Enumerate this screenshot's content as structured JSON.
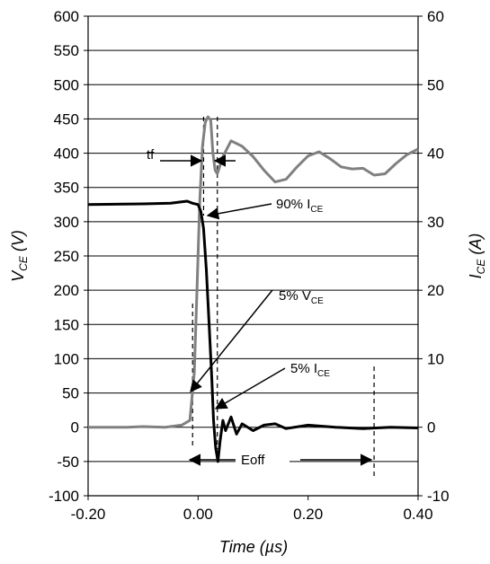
{
  "chart_data": {
    "type": "line",
    "xlabel": "Time (µs)",
    "ylabel_left_main": "V",
    "ylabel_left_sub": "CE",
    "ylabel_left_unit": " (V)",
    "ylabel_right_main": "I",
    "ylabel_right_sub": "CE",
    "ylabel_right_unit": " (A)",
    "xlim": [
      -0.2,
      0.4
    ],
    "ylim_left": [
      -100,
      600
    ],
    "ylim_right": [
      -10,
      60
    ],
    "grid": "horizontal",
    "x_ticks": [
      "-0.20",
      "0.00",
      "0.20",
      "0.40"
    ],
    "y_ticks_left": [
      "600",
      "550",
      "500",
      "450",
      "400",
      "350",
      "300",
      "250",
      "200",
      "150",
      "100",
      "50",
      "0",
      "-50",
      "-100"
    ],
    "y_ticks_right": [
      "60",
      "50",
      "40",
      "30",
      "20",
      "10",
      "0",
      "-10"
    ],
    "series": [
      {
        "color": "#808080",
        "axis": "left",
        "points": [
          [
            -0.2,
            0
          ],
          [
            -0.13,
            0
          ],
          [
            -0.1,
            1
          ],
          [
            -0.06,
            0
          ],
          [
            -0.03,
            3
          ],
          [
            -0.015,
            10
          ],
          [
            -0.007,
            80
          ],
          [
            -0.002,
            200
          ],
          [
            0.003,
            330
          ],
          [
            0.008,
            410
          ],
          [
            0.013,
            445
          ],
          [
            0.018,
            453
          ],
          [
            0.023,
            448
          ],
          [
            0.027,
            400
          ],
          [
            0.031,
            375
          ],
          [
            0.035,
            370
          ],
          [
            0.045,
            395
          ],
          [
            0.06,
            418
          ],
          [
            0.08,
            410
          ],
          [
            0.1,
            395
          ],
          [
            0.12,
            375
          ],
          [
            0.14,
            358
          ],
          [
            0.16,
            362
          ],
          [
            0.18,
            380
          ],
          [
            0.2,
            396
          ],
          [
            0.22,
            402
          ],
          [
            0.24,
            392
          ],
          [
            0.26,
            380
          ],
          [
            0.28,
            377
          ],
          [
            0.3,
            378
          ],
          [
            0.32,
            368
          ],
          [
            0.34,
            370
          ],
          [
            0.36,
            385
          ],
          [
            0.38,
            398
          ],
          [
            0.4,
            406
          ]
        ]
      },
      {
        "color": "#000000",
        "axis": "left",
        "points": [
          [
            -0.2,
            325
          ],
          [
            -0.1,
            326
          ],
          [
            -0.05,
            327
          ],
          [
            -0.02,
            330
          ],
          [
            -0.01,
            327
          ],
          [
            0.0,
            325
          ],
          [
            0.005,
            315
          ],
          [
            0.01,
            290
          ],
          [
            0.015,
            230
          ],
          [
            0.02,
            150
          ],
          [
            0.025,
            70
          ],
          [
            0.028,
            10
          ],
          [
            0.032,
            -30
          ],
          [
            0.036,
            -50
          ],
          [
            0.04,
            -20
          ],
          [
            0.045,
            10
          ],
          [
            0.05,
            -5
          ],
          [
            0.06,
            15
          ],
          [
            0.07,
            -10
          ],
          [
            0.08,
            5
          ],
          [
            0.1,
            -5
          ],
          [
            0.12,
            3
          ],
          [
            0.14,
            5
          ],
          [
            0.16,
            -2
          ],
          [
            0.2,
            3
          ],
          [
            0.25,
            0
          ],
          [
            0.3,
            -2
          ],
          [
            0.35,
            0
          ],
          [
            0.4,
            -1
          ]
        ]
      }
    ],
    "vlines": [
      -0.01,
      0.01,
      0.035,
      0.32
    ],
    "annotations": {
      "tf": "tf",
      "i90_prefix": "90% I",
      "i90_sub": "CE",
      "v5_prefix": "5% V",
      "v5_sub": "CE",
      "i5_prefix": "5% I",
      "i5_sub": "CE",
      "eoff": "Eoff"
    }
  }
}
